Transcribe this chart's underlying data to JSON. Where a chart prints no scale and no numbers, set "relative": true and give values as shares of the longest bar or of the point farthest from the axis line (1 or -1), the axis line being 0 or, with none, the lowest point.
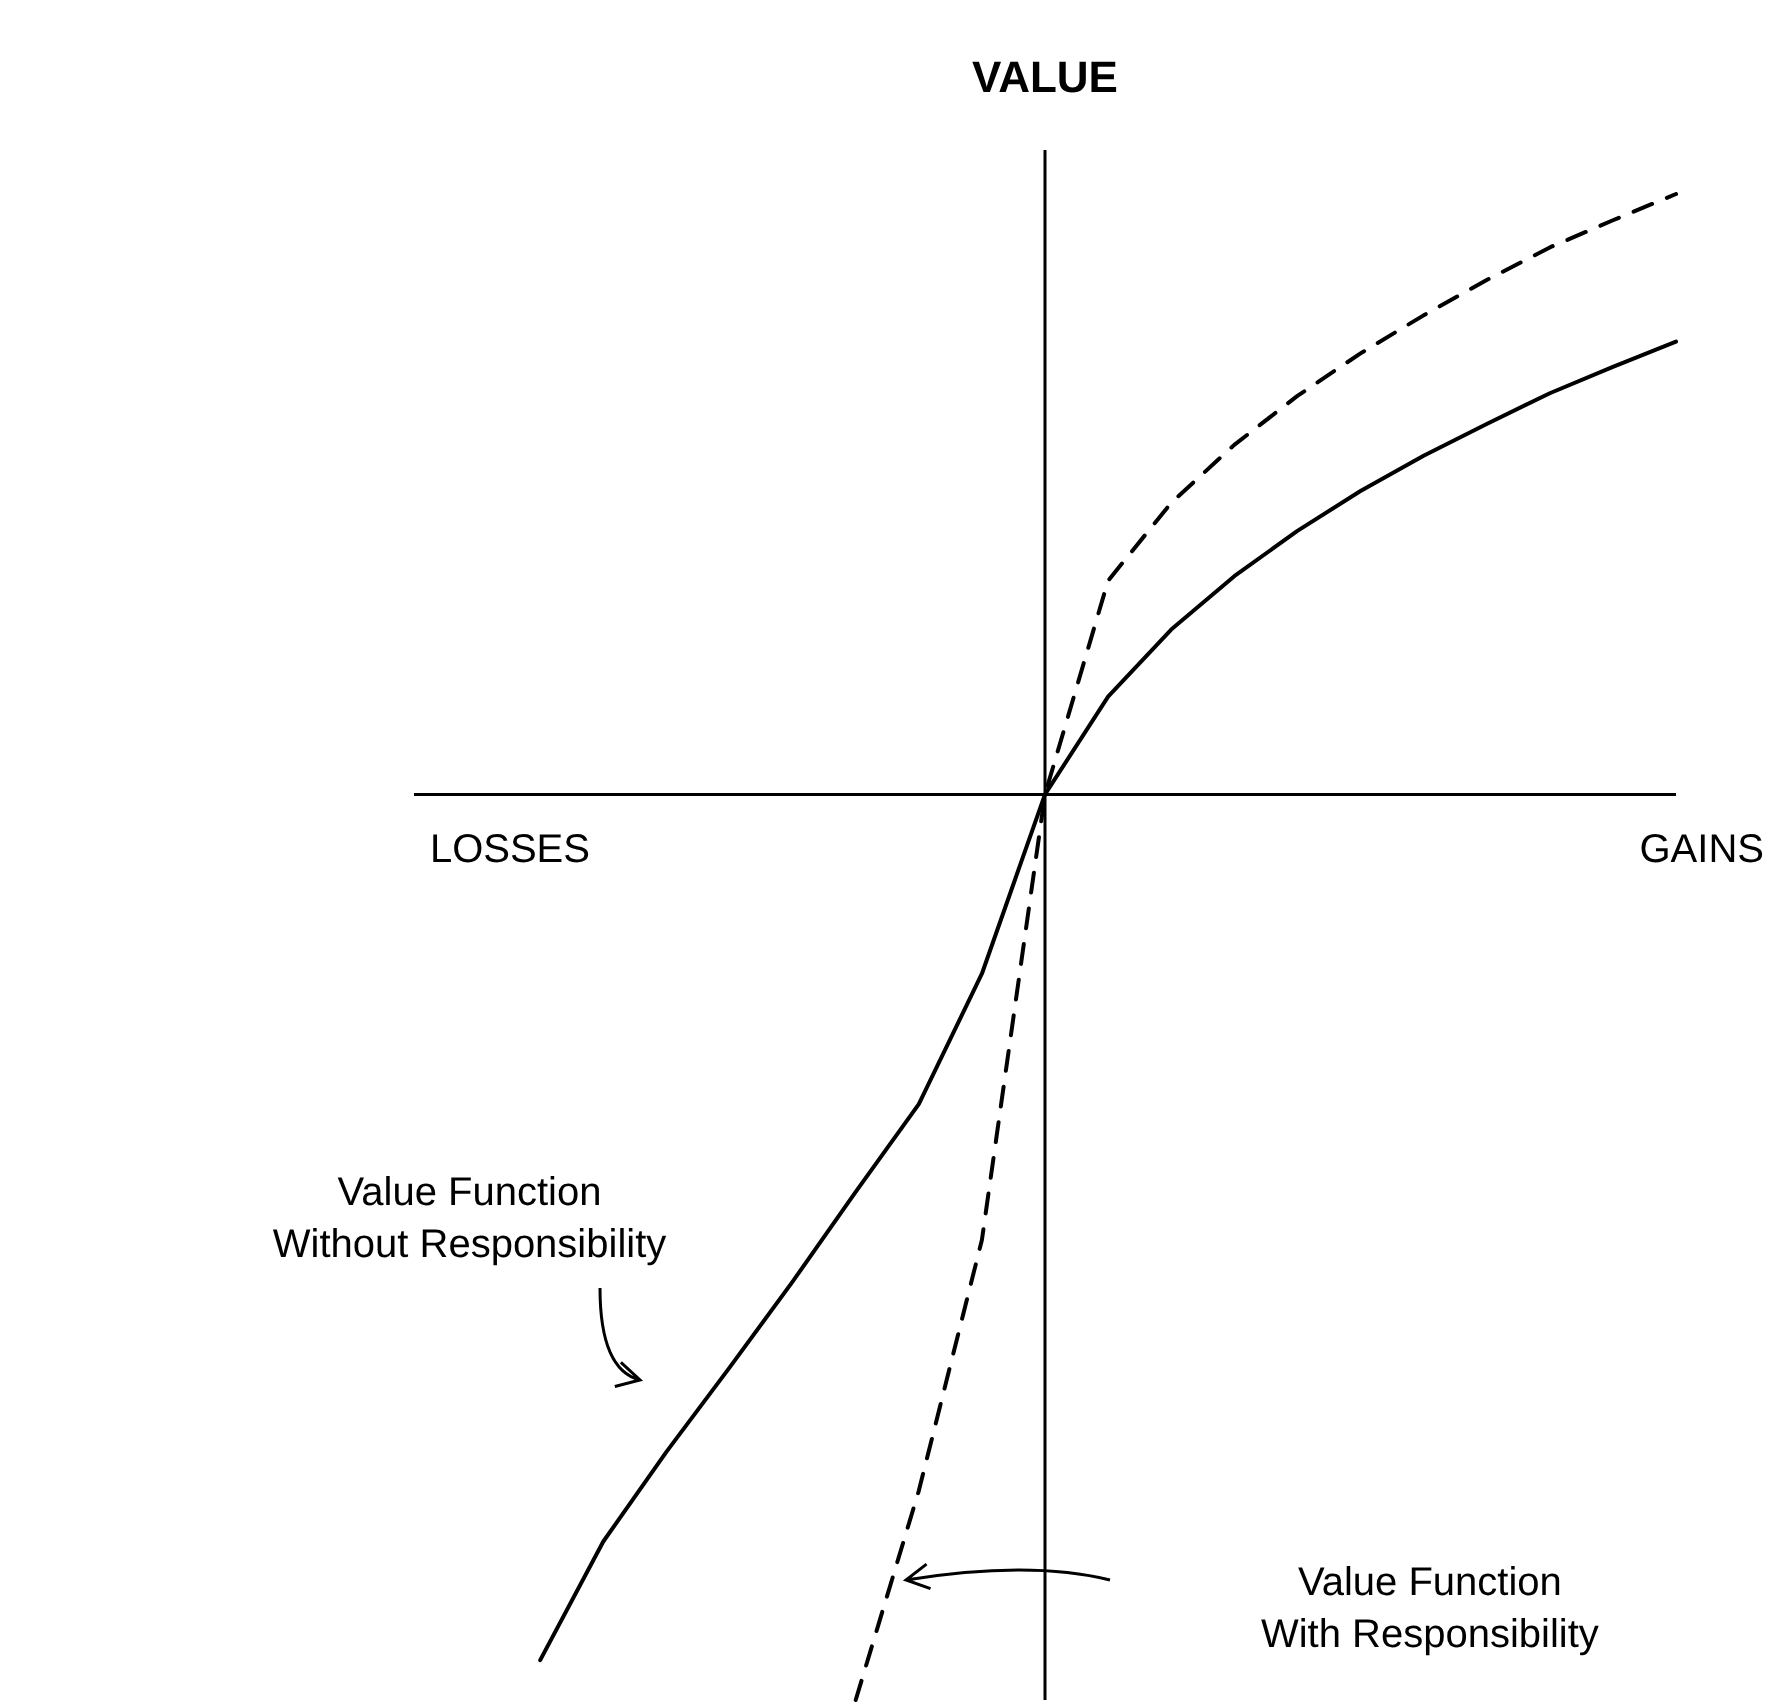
{
  "chart_data": {
    "type": "line",
    "relative": true,
    "ylabel": "VALUE",
    "grid": false,
    "legend": false,
    "marker": "none",
    "categories": [
      null,
      null,
      null,
      null,
      null,
      null,
      null,
      null,
      null,
      null,
      null,
      null,
      null,
      null,
      null,
      null,
      null,
      null,
      null,
      null,
      null
    ],
    "series": [
      {
        "color": "#000000",
        "line_style": "solid",
        "values": [
          null,
          null,
          -0.956,
          -0.825,
          -0.726,
          -0.633,
          -0.538,
          -0.439,
          -0.342,
          -0.198,
          0,
          0.108,
          0.182,
          0.241,
          0.291,
          0.335,
          0.374,
          0.409,
          0.443,
          0.472,
          0.5
        ]
      },
      {
        "color": "#000000",
        "line_style": "dashed",
        "values": [
          null,
          null,
          null,
          null,
          null,
          null,
          null,
          -1.0,
          -0.769,
          -0.492,
          0,
          0.236,
          0.322,
          0.386,
          0.44,
          0.487,
          0.529,
          0.568,
          0.604,
          0.634,
          0.663
        ]
      }
    ],
    "annotations": [
      "LOSSES",
      "GAINS",
      "Value Function\nWithout Responsibility",
      "Value Function\nWith Responsibility"
    ]
  }
}
